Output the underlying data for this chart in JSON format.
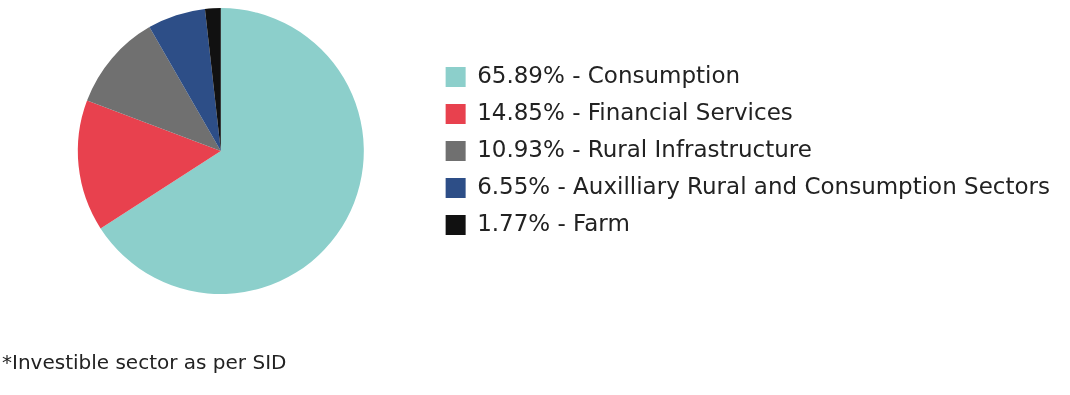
{
  "chart_data": {
    "type": "pie",
    "categories": [
      "65.89% - Consumption",
      "14.85% - Financial Services",
      "10.93% - Rural Infrastructure",
      "6.55% - Auxilliary Rural and Consumption Sectors",
      "1.77% - Farm"
    ],
    "values": [
      65.89,
      14.85,
      10.93,
      6.55,
      1.77
    ],
    "colors": [
      "#8ccfcb",
      "#e8414e",
      "#707070",
      "#2d4e87",
      "#111111"
    ],
    "legend": "right",
    "annotations": [
      "*Investible sector as per SID"
    ]
  }
}
